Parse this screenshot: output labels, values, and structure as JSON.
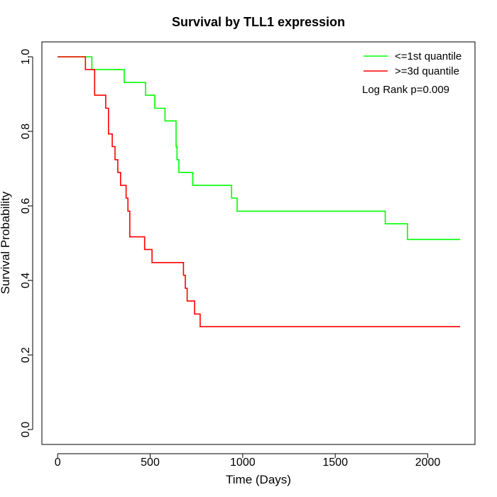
{
  "chart_data": {
    "type": "line",
    "title": "Survival by TLL1 expression",
    "xlabel": "Time (Days)",
    "ylabel": "Survival Probability",
    "xlim": [
      -85,
      2255
    ],
    "ylim": [
      -0.04,
      1.04
    ],
    "xticks": [
      0,
      500,
      1000,
      1500,
      2000
    ],
    "yticks": [
      0.0,
      0.2,
      0.4,
      0.6,
      0.8,
      1.0
    ],
    "xtick_labels": [
      "0",
      "500",
      "1000",
      "1500",
      "2000"
    ],
    "ytick_labels": [
      "0.0",
      "0.2",
      "0.4",
      "0.6",
      "0.8",
      "1.0"
    ],
    "grid": false,
    "legend_position": "top-right",
    "annotation": "Log Rank p=0.009",
    "series": [
      {
        "name": "<=1st quantile",
        "color": "#00ff00",
        "step_x": [
          0,
          185,
          360,
          475,
          525,
          580,
          640,
          645,
          655,
          670,
          730,
          940,
          970,
          1770,
          1890,
          2175
        ],
        "step_y": [
          1.0,
          0.966,
          0.931,
          0.897,
          0.862,
          0.828,
          0.759,
          0.724,
          0.69,
          0.69,
          0.655,
          0.621,
          0.586,
          0.552,
          0.51,
          0.51
        ]
      },
      {
        "name": ">=3d quantile",
        "color": "#ff0000",
        "step_x": [
          0,
          150,
          200,
          260,
          275,
          295,
          310,
          325,
          340,
          370,
          380,
          390,
          470,
          510,
          680,
          690,
          700,
          740,
          770,
          2175
        ],
        "step_y": [
          1.0,
          0.966,
          0.897,
          0.862,
          0.793,
          0.759,
          0.724,
          0.69,
          0.655,
          0.621,
          0.586,
          0.517,
          0.483,
          0.448,
          0.414,
          0.379,
          0.345,
          0.31,
          0.276,
          0.276
        ]
      }
    ]
  }
}
